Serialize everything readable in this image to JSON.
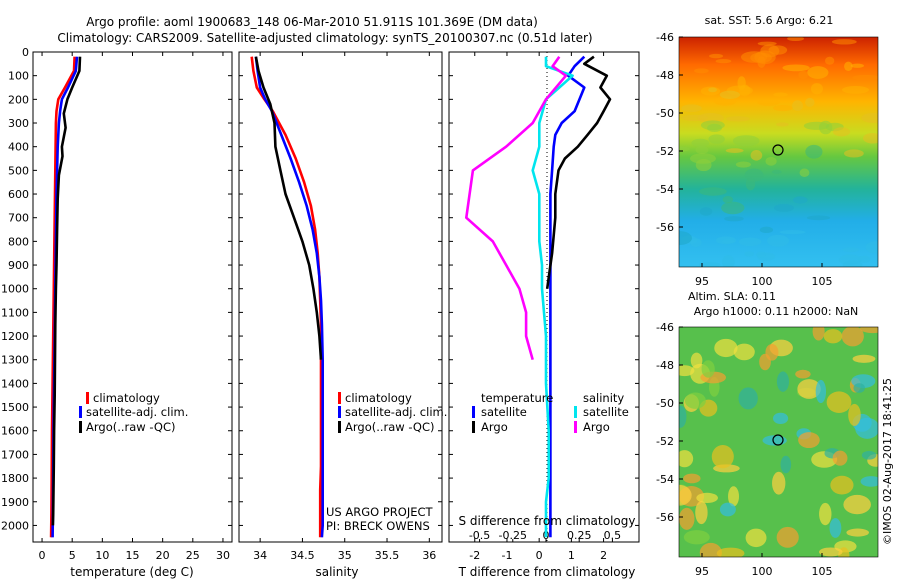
{
  "header": {
    "title_line1": "Argo profile: aoml 1900683_148 06-Mar-2010 51.911S 101.369E (DM data)",
    "title_line2": "Climatology: CARS2009. Satellite-adjusted climatology: synTS_20100307.nc (0.51d later)"
  },
  "depth_ticks": [
    "0",
    "100",
    "200",
    "300",
    "400",
    "500",
    "600",
    "700",
    "800",
    "900",
    "1000",
    "1100",
    "1200",
    "1300",
    "1400",
    "1500",
    "1600",
    "1700",
    "1800",
    "1900",
    "2000"
  ],
  "colors": {
    "climatology": "#ff0000",
    "satellite": "#0000ff",
    "argo": "#000000",
    "cyan": "#00e5ee",
    "magenta": "#ff00ff",
    "dotted": "#000000"
  },
  "chart_data": [
    {
      "type": "line",
      "id": "temperature",
      "xlabel": "temperature (deg C)",
      "xlim": [
        -1.5,
        31.5
      ],
      "ylim": [
        2070,
        0
      ],
      "xticks": [
        0,
        5,
        10,
        15,
        20,
        25,
        30
      ],
      "xtick_labels": [
        "0",
        "5",
        "10",
        "15",
        "20",
        "25",
        "30"
      ],
      "legend": [
        "climatology",
        "satellite-adj. clim.",
        "Argo(..raw -QC)"
      ],
      "series": [
        {
          "name": "climatology",
          "color": "#ff0000",
          "x": [
            5.4,
            5.3,
            3.8,
            2.7,
            2.4,
            2.3,
            2.25,
            2.2,
            2.15,
            2.1,
            2.05,
            2.0,
            1.95,
            1.9,
            1.85,
            1.8,
            1.75,
            1.7,
            1.65,
            1.6,
            1.55,
            1.5
          ],
          "y": [
            20,
            80,
            150,
            200,
            250,
            300,
            400,
            500,
            600,
            700,
            800,
            900,
            1000,
            1100,
            1200,
            1300,
            1400,
            1500,
            1600,
            1800,
            1950,
            2050
          ]
        },
        {
          "name": "satellite-adj. clim.",
          "color": "#0000ff",
          "x": [
            5.8,
            5.6,
            4.3,
            3.3,
            3.0,
            2.8,
            2.6,
            2.5,
            2.4,
            2.35,
            2.3,
            2.25,
            2.2,
            2.15,
            2.1,
            2.05,
            2.0,
            1.95,
            1.9,
            1.85,
            1.8,
            1.75
          ],
          "y": [
            20,
            80,
            150,
            200,
            250,
            300,
            400,
            500,
            600,
            700,
            800,
            900,
            1000,
            1100,
            1200,
            1300,
            1400,
            1500,
            1600,
            1800,
            1950,
            2050
          ]
        },
        {
          "name": "Argo(..raw -QC)",
          "color": "#000000",
          "x": [
            6.3,
            6.2,
            5.0,
            4.2,
            3.6,
            3.9,
            3.3,
            3.4,
            2.8,
            2.6,
            2.5,
            2.4,
            2.3,
            2.2,
            2.15,
            2.1,
            2.0,
            1.95,
            1.9,
            1.85,
            1.8
          ],
          "y": [
            20,
            80,
            150,
            200,
            260,
            320,
            400,
            440,
            520,
            620,
            750,
            900,
            1000,
            1150,
            1300,
            1450,
            1600,
            1750,
            1850,
            1950,
            2000
          ]
        }
      ]
    },
    {
      "type": "line",
      "id": "salinity",
      "xlabel": "salinity",
      "xlim": [
        33.75,
        36.15
      ],
      "ylim": [
        2070,
        0
      ],
      "xticks": [
        34,
        34.5,
        35,
        35.5,
        36
      ],
      "xtick_labels": [
        "34",
        "34.5",
        "35",
        "35.5",
        "36"
      ],
      "legend": [
        "climatology",
        "satellite-adj. clim.",
        "Argo(..raw -QC)"
      ],
      "annotations": [
        "US ARGO PROJECT",
        "PI: BRECK OWENS"
      ],
      "series": [
        {
          "name": "climatology",
          "color": "#ff0000",
          "x": [
            33.9,
            33.92,
            33.96,
            34.05,
            34.15,
            34.3,
            34.42,
            34.52,
            34.6,
            34.65,
            34.68,
            34.7,
            34.71,
            34.72,
            34.72,
            34.72,
            34.72,
            34.72,
            34.71,
            34.71,
            34.71
          ],
          "y": [
            20,
            80,
            150,
            200,
            250,
            350,
            450,
            550,
            650,
            750,
            850,
            950,
            1050,
            1150,
            1300,
            1450,
            1600,
            1750,
            1850,
            1950,
            2050
          ]
        },
        {
          "name": "satellite-adj. clim.",
          "color": "#0000ff",
          "x": [
            33.95,
            33.97,
            34.0,
            34.06,
            34.14,
            34.25,
            34.36,
            34.46,
            34.55,
            34.62,
            34.67,
            34.7,
            34.72,
            34.73,
            34.74,
            34.74,
            34.74,
            34.74,
            34.74,
            34.74,
            34.74,
            34.73
          ],
          "y": [
            20,
            80,
            150,
            200,
            250,
            350,
            450,
            550,
            650,
            750,
            850,
            950,
            1050,
            1150,
            1300,
            1450,
            1600,
            1750,
            1850,
            1950,
            2000,
            2050
          ]
        },
        {
          "name": "Argo(..raw -QC)",
          "color": "#000000",
          "x": [
            33.95,
            33.98,
            34.04,
            34.12,
            34.17,
            34.18,
            34.24,
            34.3,
            34.4,
            34.5,
            34.58,
            34.63,
            34.67,
            34.7,
            34.72
          ],
          "y": [
            20,
            80,
            150,
            220,
            300,
            400,
            500,
            600,
            700,
            800,
            900,
            1000,
            1100,
            1200,
            1300
          ]
        }
      ]
    },
    {
      "type": "line",
      "id": "difference",
      "xlabel": "T difference from climatology",
      "xlabel2": "S difference from climatology",
      "xlim": [
        -2.8,
        3.1
      ],
      "ylim": [
        2070,
        0
      ],
      "xticks": [
        -2,
        -1,
        0,
        1,
        2
      ],
      "xtick_labels": [
        "-2",
        "-1",
        "0",
        "1",
        "2"
      ],
      "xticks2": [
        -0.5,
        -0.25,
        0,
        0.25,
        0.5
      ],
      "xtick_labels2": [
        "-0.5",
        "-0.25",
        "0",
        "0.25",
        "0.5"
      ],
      "legend_headers": [
        "temperature",
        "salinity"
      ],
      "legend": [
        "satellite",
        "Argo",
        "satellite",
        "Argo"
      ],
      "series": [
        {
          "name": "satellite",
          "color": "#0000ff",
          "x": [
            1.4,
            1.1,
            0.9,
            1.4,
            1.1,
            0.7,
            0.5,
            0.45,
            0.4,
            0.35,
            0.35,
            0.35,
            0.35,
            0.35,
            0.35,
            0.35,
            0.35,
            0.35,
            0.35,
            0.35,
            0.35
          ],
          "y": [
            20,
            60,
            100,
            150,
            250,
            300,
            350,
            400,
            500,
            600,
            700,
            800,
            900,
            1000,
            1200,
            1400,
            1600,
            1800,
            1900,
            2000,
            2050
          ]
        },
        {
          "name": "Argo",
          "color": "#000000",
          "x": [
            1.7,
            1.4,
            2.1,
            1.9,
            2.2,
            2.0,
            1.8,
            1.5,
            1.2,
            0.8,
            0.6,
            0.5,
            0.5,
            0.4,
            0.3,
            0.25
          ],
          "y": [
            20,
            50,
            100,
            150,
            200,
            250,
            300,
            350,
            400,
            450,
            500,
            600,
            700,
            850,
            950,
            1000
          ]
        },
        {
          "name": "satellite",
          "color": "#00e5ee",
          "x": [
            0,
            0,
            0.2,
            0.1,
            0,
            -0.05,
            -0.05,
            -0.1,
            -0.05,
            -0.05,
            -0.05,
            -0.03,
            -0.03,
            0,
            0,
            0.02,
            0.02,
            0,
            0,
            0
          ],
          "y": [
            20,
            60,
            100,
            150,
            200,
            300,
            400,
            500,
            600,
            700,
            800,
            900,
            1000,
            1200,
            1400,
            1600,
            1800,
            1900,
            2000,
            2050
          ]
        },
        {
          "name": "Argo",
          "color": "#ff00ff",
          "x": [
            0.1,
            0.05,
            0.15,
            0,
            -0.1,
            -0.3,
            -0.55,
            -0.6,
            -0.4,
            -0.3,
            -0.2,
            -0.15,
            -0.15,
            -0.1
          ],
          "y": [
            20,
            60,
            100,
            200,
            300,
            400,
            500,
            700,
            800,
            900,
            1000,
            1100,
            1200,
            1300
          ]
        }
      ]
    }
  ],
  "maps": [
    {
      "title": "sat. SST: 5.6 Argo: 6.21",
      "yticks": [
        "-46",
        "-48",
        "-50",
        "-52",
        "-54",
        "-56"
      ],
      "xticks": [
        "95",
        "100",
        "105"
      ],
      "marker_label": "Argo position"
    },
    {
      "title_line1": "Altim. SLA: 0.11",
      "title_line2": "Argo h1000: 0.11 h2000: NaN",
      "yticks": [
        "-46",
        "-48",
        "-50",
        "-52",
        "-54",
        "-56"
      ],
      "xticks": [
        "95",
        "100",
        "105"
      ],
      "marker_label": "Argo position"
    }
  ],
  "footer": {
    "credit": "©IMOS 02-Aug-2017 18:41:25"
  }
}
